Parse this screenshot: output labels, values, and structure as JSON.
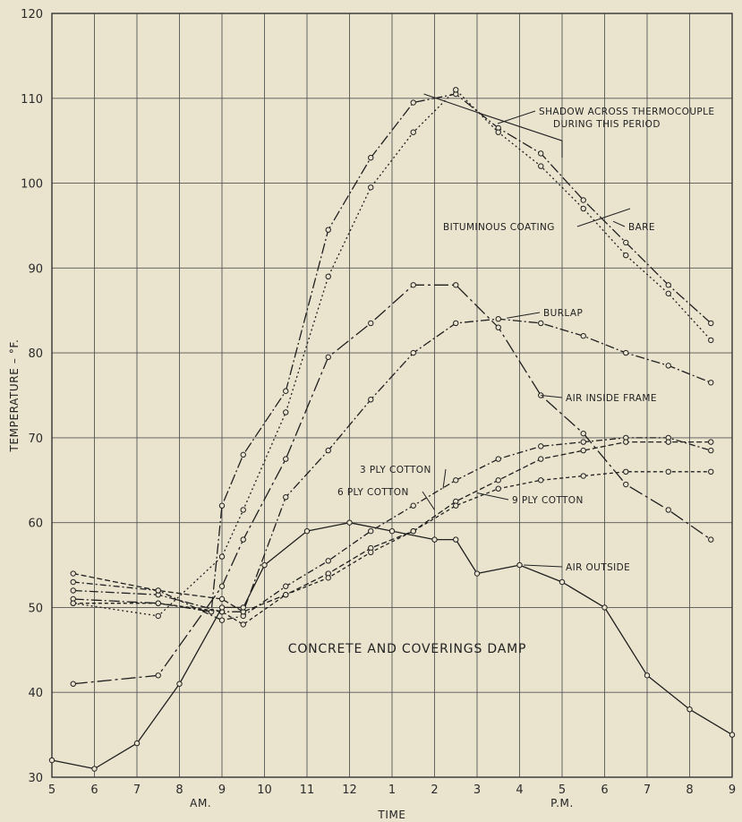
{
  "chart_data": {
    "type": "line",
    "xlabel": "TIME",
    "ylabel": "TEMPERATURE – °F.",
    "xlim": [
      5,
      21
    ],
    "ylim": [
      30,
      120
    ],
    "grid": true,
    "x_ticks": [
      {
        "v": 5,
        "label": "5"
      },
      {
        "v": 6,
        "label": "6"
      },
      {
        "v": 7,
        "label": "7"
      },
      {
        "v": 8,
        "label": "8"
      },
      {
        "v": 9,
        "label": "9"
      },
      {
        "v": 10,
        "label": "10"
      },
      {
        "v": 11,
        "label": "11"
      },
      {
        "v": 12,
        "label": "12"
      },
      {
        "v": 13,
        "label": "1"
      },
      {
        "v": 14,
        "label": "2"
      },
      {
        "v": 15,
        "label": "3"
      },
      {
        "v": 16,
        "label": "4"
      },
      {
        "v": 17,
        "label": "5"
      },
      {
        "v": 18,
        "label": "6"
      },
      {
        "v": 19,
        "label": "7"
      },
      {
        "v": 20,
        "label": "8"
      },
      {
        "v": 21,
        "label": "9"
      }
    ],
    "y_ticks": [
      30,
      40,
      50,
      60,
      70,
      80,
      90,
      100,
      110,
      120
    ],
    "am_label": "AM.",
    "pm_label": "P.M.",
    "annotation": "CONCRETE AND COVERINGS DAMP",
    "shadow_note": [
      "SHADOW ACROSS THERMOCOUPLE",
      "DURING THIS PERIOD"
    ],
    "series": [
      {
        "name": "BARE",
        "dash": "12,3,2,3",
        "x": [
          5.5,
          7.5,
          8.75,
          9,
          9.5,
          10.5,
          11.5,
          12.5,
          13.5,
          14.5,
          15.5,
          16.5,
          17.5,
          18.5,
          19.5,
          20.5
        ],
        "y": [
          51,
          50.5,
          49.5,
          62,
          68,
          75.5,
          94.5,
          103,
          109.5,
          110.5,
          106.5,
          103.5,
          98,
          93,
          88,
          83.5
        ]
      },
      {
        "name": "BITUMINOUS COATING",
        "dash": "2,3",
        "x": [
          5.5,
          7.5,
          9,
          9.5,
          10.5,
          11.5,
          12.5,
          13.5,
          14.5,
          15.5,
          16.5,
          17.5,
          18.5,
          19.5,
          20.5
        ],
        "y": [
          50.5,
          49,
          56,
          61.5,
          73,
          89,
          99.5,
          106,
          111,
          106,
          102,
          97,
          91.5,
          87,
          81.5
        ]
      },
      {
        "name": "BURLAP",
        "dash": "10,3,2,3",
        "x": [
          5.5,
          7.5,
          9,
          9.5,
          10.5,
          11.5,
          12.5,
          13.5,
          14.5,
          15.5,
          16.5,
          17.5,
          18.5,
          19.5,
          20.5
        ],
        "y": [
          52,
          51.5,
          49.5,
          49.5,
          63,
          68.5,
          74.5,
          80,
          83.5,
          84,
          83.5,
          82,
          80,
          78.5,
          76.5
        ]
      },
      {
        "name": "AIR INSIDE FRAME",
        "dash": "16,4,3,4",
        "x": [
          5.5,
          7.5,
          9,
          9.5,
          10.5,
          11.5,
          12.5,
          13.5,
          14.5,
          15.5,
          16.5,
          17.5,
          18.5,
          19.5,
          20.5
        ],
        "y": [
          41,
          42,
          52.5,
          58,
          67.5,
          79.5,
          83.5,
          88,
          88,
          83,
          75,
          70.5,
          64.5,
          61.5,
          58
        ]
      },
      {
        "name": "3 PLY COTTON",
        "dash": "7,3,2,3",
        "x": [
          5.5,
          7.5,
          9,
          9.5,
          10.5,
          11.5,
          12.5,
          13.5,
          14.5,
          15.5,
          16.5,
          17.5,
          18.5,
          19.5,
          20.5
        ],
        "y": [
          53,
          52,
          48.5,
          49,
          52.5,
          55.5,
          59,
          62,
          65,
          67.5,
          69,
          69.5,
          70,
          70,
          68.5
        ]
      },
      {
        "name": "6 PLY COTTON",
        "dash": "6,3",
        "x": [
          5.5,
          7.5,
          9,
          9.5,
          10.5,
          11.5,
          12.5,
          13.5,
          14.5,
          15.5,
          16.5,
          17.5,
          18.5,
          19.5,
          20.5
        ],
        "y": [
          54,
          52,
          51,
          49.5,
          51.5,
          54,
          57,
          59,
          62.5,
          65,
          67.5,
          68.5,
          69.5,
          69.5,
          69.5
        ]
      },
      {
        "name": "9 PLY COTTON",
        "dash": "4,3",
        "x": [
          5.5,
          7.5,
          9,
          9.5,
          10.5,
          11.5,
          12.5,
          13.5,
          14.5,
          15.5,
          16.5,
          17.5,
          18.5,
          19.5,
          20.5
        ],
        "y": [
          50.5,
          50.5,
          49.5,
          48,
          51.5,
          53.5,
          56.5,
          59,
          62,
          64,
          65,
          65.5,
          66,
          66,
          66
        ]
      },
      {
        "name": "AIR OUTSIDE",
        "dash": "",
        "x": [
          5,
          6,
          7,
          8,
          9,
          9.5,
          10,
          11,
          12,
          13,
          14,
          14.5,
          15,
          16,
          17,
          18,
          19,
          20,
          21
        ],
        "y": [
          32,
          31,
          34,
          41,
          50,
          50,
          55,
          59,
          60,
          59,
          58,
          58,
          54,
          55,
          53,
          50,
          42,
          38,
          35
        ]
      }
    ]
  }
}
